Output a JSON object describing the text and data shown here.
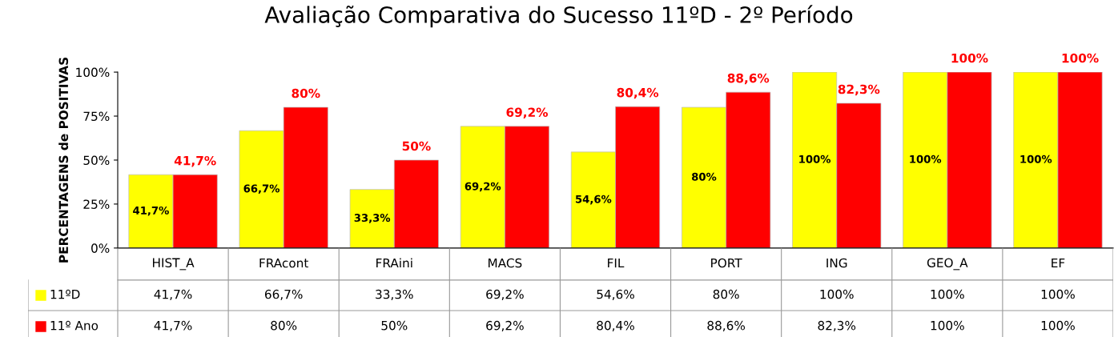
{
  "chart_data": {
    "type": "bar",
    "title": "Avaliação Comparativa do Sucesso 11ºD - 2º Período",
    "ylabel": "PERCENTAGENS de POSITIVAS",
    "categories": [
      "HIST_A",
      "FRAcont",
      "FRAini",
      "MACS",
      "FIL",
      "PORT",
      "ING",
      "GEO_A",
      "EF"
    ],
    "series": [
      {
        "name": "11ºD",
        "color": "#ffff00",
        "values": [
          41.7,
          66.7,
          33.3,
          69.2,
          54.6,
          80,
          100,
          100,
          100
        ],
        "value_labels": [
          "41,7%",
          "66,7%",
          "33,3%",
          "69,2%",
          "54,6%",
          "80%",
          "100%",
          "100%",
          "100%"
        ]
      },
      {
        "name": "11º Ano",
        "color": "#ff0000",
        "values": [
          41.7,
          80,
          50,
          69.2,
          80.4,
          88.6,
          82.3,
          100,
          100
        ],
        "value_labels": [
          "41,7%",
          "80%",
          "50%",
          "69,2%",
          "80,4%",
          "88,6%",
          "82,3%",
          "100%",
          "100%"
        ]
      }
    ],
    "ylim": [
      0,
      100
    ],
    "yticks": [
      {
        "value": 0,
        "label": "0%"
      },
      {
        "value": 25,
        "label": "25%"
      },
      {
        "value": 50,
        "label": "50%"
      },
      {
        "value": 75,
        "label": "75%"
      },
      {
        "value": 100,
        "label": "100%"
      }
    ],
    "grid": false,
    "legend": "bottom"
  }
}
